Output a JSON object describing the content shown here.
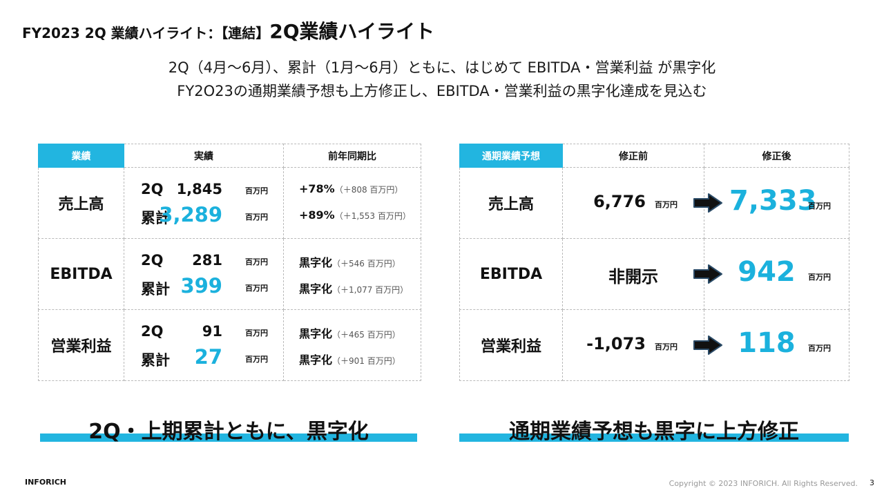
{
  "header": {
    "prefix": "FY2023 2Q 業績ハイライト：【連結】",
    "title": "2Q業績ハイライト"
  },
  "subtitle": {
    "line1": "2Q（4月～6月）、累計（1月～6月）ともに、はじめて EBITDA・営業利益 が黒字化",
    "line2": "FY2O23の通期業績予想も上方修正し、EBITDA・営業利益の黒字化達成を見込む"
  },
  "results_table": {
    "headers": [
      "業績",
      "実績",
      "前年同期比"
    ],
    "rows": [
      {
        "label": "売上高",
        "q_label": "2Q",
        "q_value": "1,845",
        "q_unit": "百万円",
        "cum_label": "累計",
        "cum_value": "3,289",
        "cum_unit": "百万円",
        "q_yoy": "+78%",
        "q_yoy_detail": "（＋808 百万円）",
        "cum_yoy": "+89%",
        "cum_yoy_detail": "（＋1,553 百万円）"
      },
      {
        "label": "EBITDA",
        "q_label": "2Q",
        "q_value": "281",
        "q_unit": "百万円",
        "cum_label": "累計",
        "cum_value": "399",
        "cum_unit": "百万円",
        "q_yoy": "黒字化",
        "q_yoy_detail": "（＋546 百万円）",
        "cum_yoy": "黒字化",
        "cum_yoy_detail": "（＋1,077 百万円）"
      },
      {
        "label": "営業利益",
        "q_label": "2Q",
        "q_value": "91",
        "q_unit": "百万円",
        "cum_label": "累計",
        "cum_value": "27",
        "cum_unit": "百万円",
        "q_yoy": "黒字化",
        "q_yoy_detail": "（＋465 百万円）",
        "cum_yoy": "黒字化",
        "cum_yoy_detail": "（＋901 百万円）"
      }
    ]
  },
  "forecast_table": {
    "headers": [
      "通期業績予想",
      "修正前",
      "修正後"
    ],
    "rows": [
      {
        "label": "売上高",
        "before": "6,776",
        "before_unit": "百万円",
        "after": "7,333",
        "after_unit": "百万円"
      },
      {
        "label": "EBITDA",
        "before": "非開示",
        "before_unit": "",
        "after": "942",
        "after_unit": "百万円"
      },
      {
        "label": "営業利益",
        "before": "-1,073",
        "before_unit": "百万円",
        "after": "118",
        "after_unit": "百万円"
      }
    ]
  },
  "banners": {
    "left": "2Q・上期累計ともに、黒字化",
    "right": "通期業績予想も黒字に上方修正"
  },
  "footer": {
    "brand": "INFORICH",
    "copyright": "Copyright © 2023 INFORICH. All Rights Reserved.",
    "page": "3"
  },
  "colors": {
    "accent": "#22b5e0",
    "accent_text": "#1bb1dd",
    "border": "#b9b9b9"
  },
  "icons": {
    "arrow": "right-arrow-icon"
  }
}
